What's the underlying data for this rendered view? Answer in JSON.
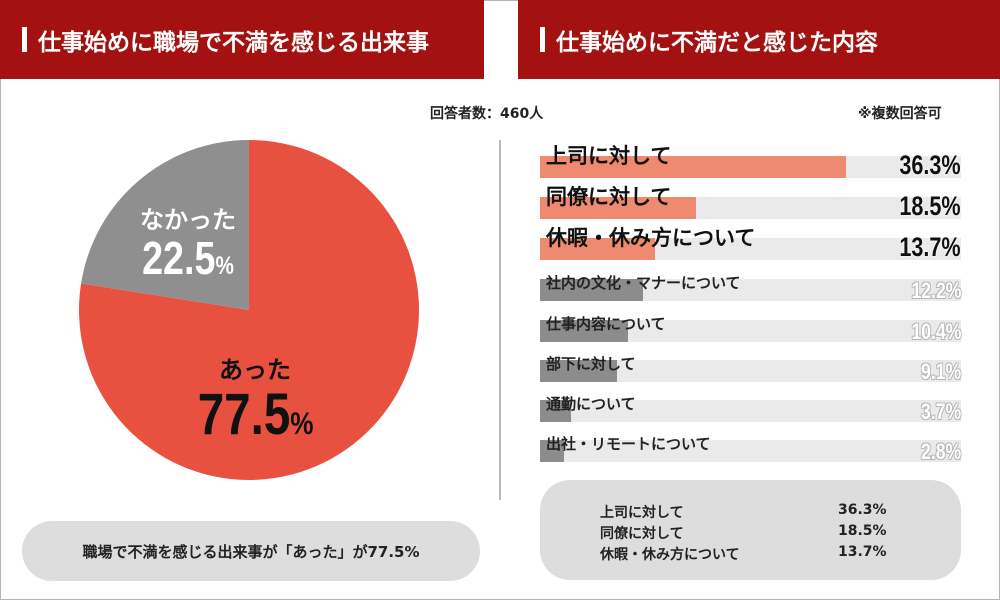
{
  "left_panel": {
    "title": "仕事始めに職場で不満を感じる出来事",
    "respondents": "回答者数：460人",
    "summary": "職場で不満を感じる出来事が「あった」が77.5%"
  },
  "right_panel": {
    "title": "仕事始めに不満だと感じた内容",
    "note": "※複数回答可"
  },
  "colors": {
    "banner": "#a31110",
    "pie_yes": "#e85140",
    "pie_no": "#8f8f8f",
    "bar_top": "#ee8a70",
    "bar_rest": "#8c8c8c",
    "track": "#eaeaea"
  },
  "chart_data": [
    {
      "type": "pie",
      "title": "仕事始めに職場で不満を感じる出来事",
      "slices": [
        {
          "label": "あった",
          "value": 77.5,
          "value_text": "77.5",
          "color": "#e85140"
        },
        {
          "label": "なかった",
          "value": 22.5,
          "value_text": "22.5",
          "color": "#8f8f8f"
        }
      ],
      "unit": "%"
    },
    {
      "type": "bar",
      "orientation": "horizontal",
      "title": "仕事始めに不満だと感じた内容",
      "categories": [
        "上司に対して",
        "同僚に対して",
        "休暇・休み方について",
        "社内の文化・マナーについて",
        "仕事内容について",
        "部下に対して",
        "通勤について",
        "出社・リモートについて"
      ],
      "values": [
        36.3,
        18.5,
        13.7,
        12.2,
        10.4,
        9.1,
        3.7,
        2.8
      ],
      "value_labels": [
        "36.3%",
        "18.5%",
        "13.7%",
        "12.2%",
        "10.4%",
        "9.1%",
        "3.7%",
        "2.8%"
      ],
      "highlight_top": 3,
      "xlim": [
        0,
        50
      ]
    }
  ],
  "summary_box": [
    {
      "label": "上司に対して",
      "value": "36.3%"
    },
    {
      "label": "同僚に対して",
      "value": "18.5%"
    },
    {
      "label": "休暇・休み方について",
      "value": "13.7%"
    }
  ]
}
